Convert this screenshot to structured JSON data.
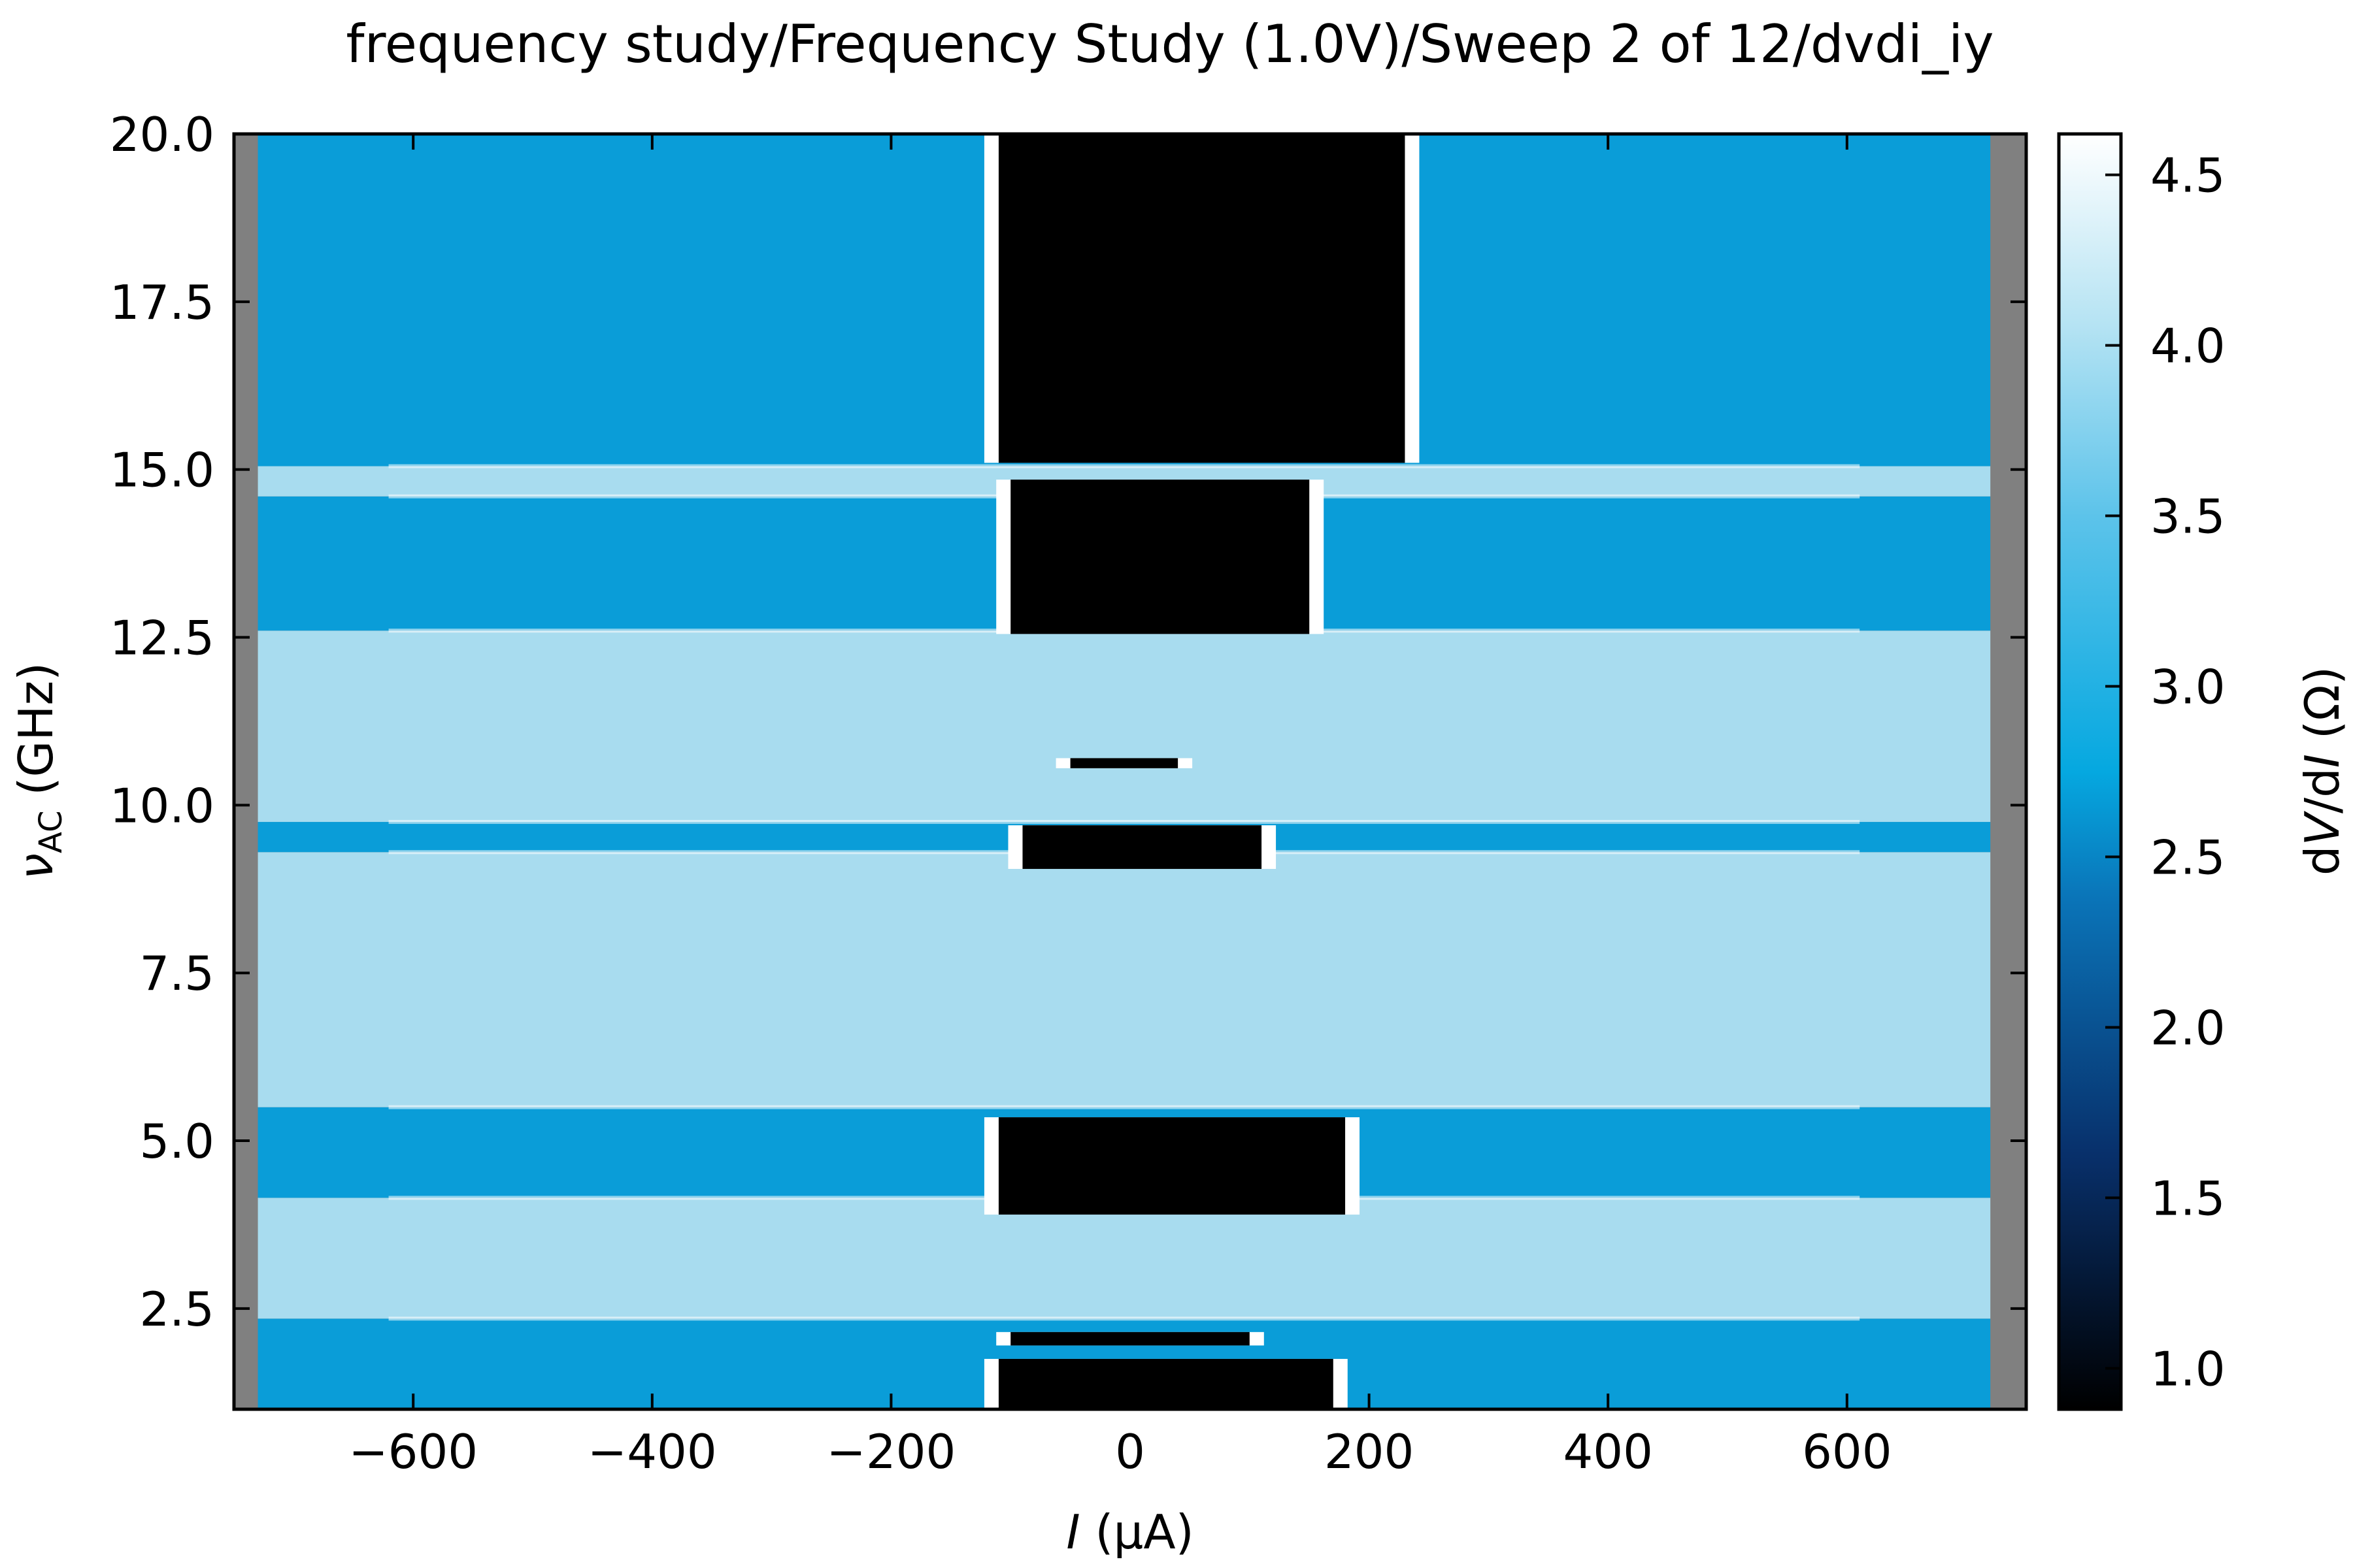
{
  "chart_data": {
    "type": "heatmap",
    "title": "frequency study/Frequency Study (1.0V)/Sweep 2 of 12/dvdi_iy",
    "xlabel_italic": "I",
    "xlabel_rest": " (μA)",
    "ylabel_main": "ν",
    "ylabel_sub": "AC",
    "ylabel_rest": " (GHz)",
    "colorbar_label_pre": "d",
    "colorbar_label_v": "V",
    "colorbar_label_mid": "/d",
    "colorbar_label_i": "I",
    "colorbar_label_post": " (Ω)",
    "xlim": [
      -750,
      750
    ],
    "ylim": [
      1.0,
      20.0
    ],
    "clim": [
      0.88,
      4.62
    ],
    "data_extent_x": [
      -730,
      720
    ],
    "xticks": [
      -600,
      -400,
      -200,
      0,
      200,
      400,
      600
    ],
    "xtick_labels": [
      "−600",
      "−400",
      "−200",
      "0",
      "200",
      "400",
      "600"
    ],
    "yticks": [
      2.5,
      5.0,
      7.5,
      10.0,
      12.5,
      15.0,
      17.5,
      20.0
    ],
    "ytick_labels": [
      "2.5",
      "5.0",
      "7.5",
      "10.0",
      "12.5",
      "15.0",
      "17.5",
      "20.0"
    ],
    "colorbar_ticks": [
      1.0,
      1.5,
      2.0,
      2.5,
      3.0,
      3.5,
      4.0,
      4.5
    ],
    "colorbar_tick_labels": [
      "1.0",
      "1.5",
      "2.0",
      "2.5",
      "3.0",
      "3.5",
      "4.0",
      "4.5"
    ],
    "colormap": "blue (black → blue → white)",
    "colors": {
      "background_gray": "#808080",
      "band_dark": "#0a9dd8",
      "band_light": "#a8dcef",
      "core_black": "#000000",
      "edge_white": "#ffffff"
    },
    "frequency_bands": [
      {
        "y_from": 1.0,
        "y_to": 2.35,
        "regime": "low",
        "value": 2.45
      },
      {
        "y_from": 2.35,
        "y_to": 4.15,
        "regime": "high",
        "value": 3.55
      },
      {
        "y_from": 4.15,
        "y_to": 5.5,
        "regime": "low",
        "value": 2.45
      },
      {
        "y_from": 5.5,
        "y_to": 9.3,
        "regime": "high",
        "value": 3.55
      },
      {
        "y_from": 9.3,
        "y_to": 9.75,
        "regime": "low",
        "value": 2.3
      },
      {
        "y_from": 9.75,
        "y_to": 12.6,
        "regime": "high",
        "value": 3.55
      },
      {
        "y_from": 12.6,
        "y_to": 14.6,
        "regime": "low",
        "value": 2.45
      },
      {
        "y_from": 14.6,
        "y_to": 15.05,
        "regime": "high",
        "value": 3.55
      },
      {
        "y_from": 15.05,
        "y_to": 20.0,
        "regime": "low",
        "value": 2.5
      }
    ],
    "superconducting_regions": [
      {
        "y_bottom": 1.0,
        "y_top": 1.75,
        "x_left": -110,
        "x_right": 170,
        "value": 0.9
      },
      {
        "y_bottom": 1.95,
        "y_top": 2.15,
        "x_left": -100,
        "x_right": 100,
        "value": 0.9
      },
      {
        "y_bottom": 3.9,
        "y_top": 5.35,
        "x_left": -110,
        "x_right": 180,
        "value": 0.9
      },
      {
        "y_bottom": 9.05,
        "y_top": 9.7,
        "x_left": -90,
        "x_right": 110,
        "value": 0.9
      },
      {
        "y_bottom": 10.55,
        "y_top": 10.7,
        "x_left": -50,
        "x_right": 40,
        "value": 0.9
      },
      {
        "y_bottom": 12.55,
        "y_top": 14.85,
        "x_left": -100,
        "x_right": 150,
        "value": 0.9
      },
      {
        "y_bottom": 15.1,
        "y_top": 20.0,
        "x_left": -110,
        "x_right": 230,
        "value": 0.9
      }
    ]
  }
}
